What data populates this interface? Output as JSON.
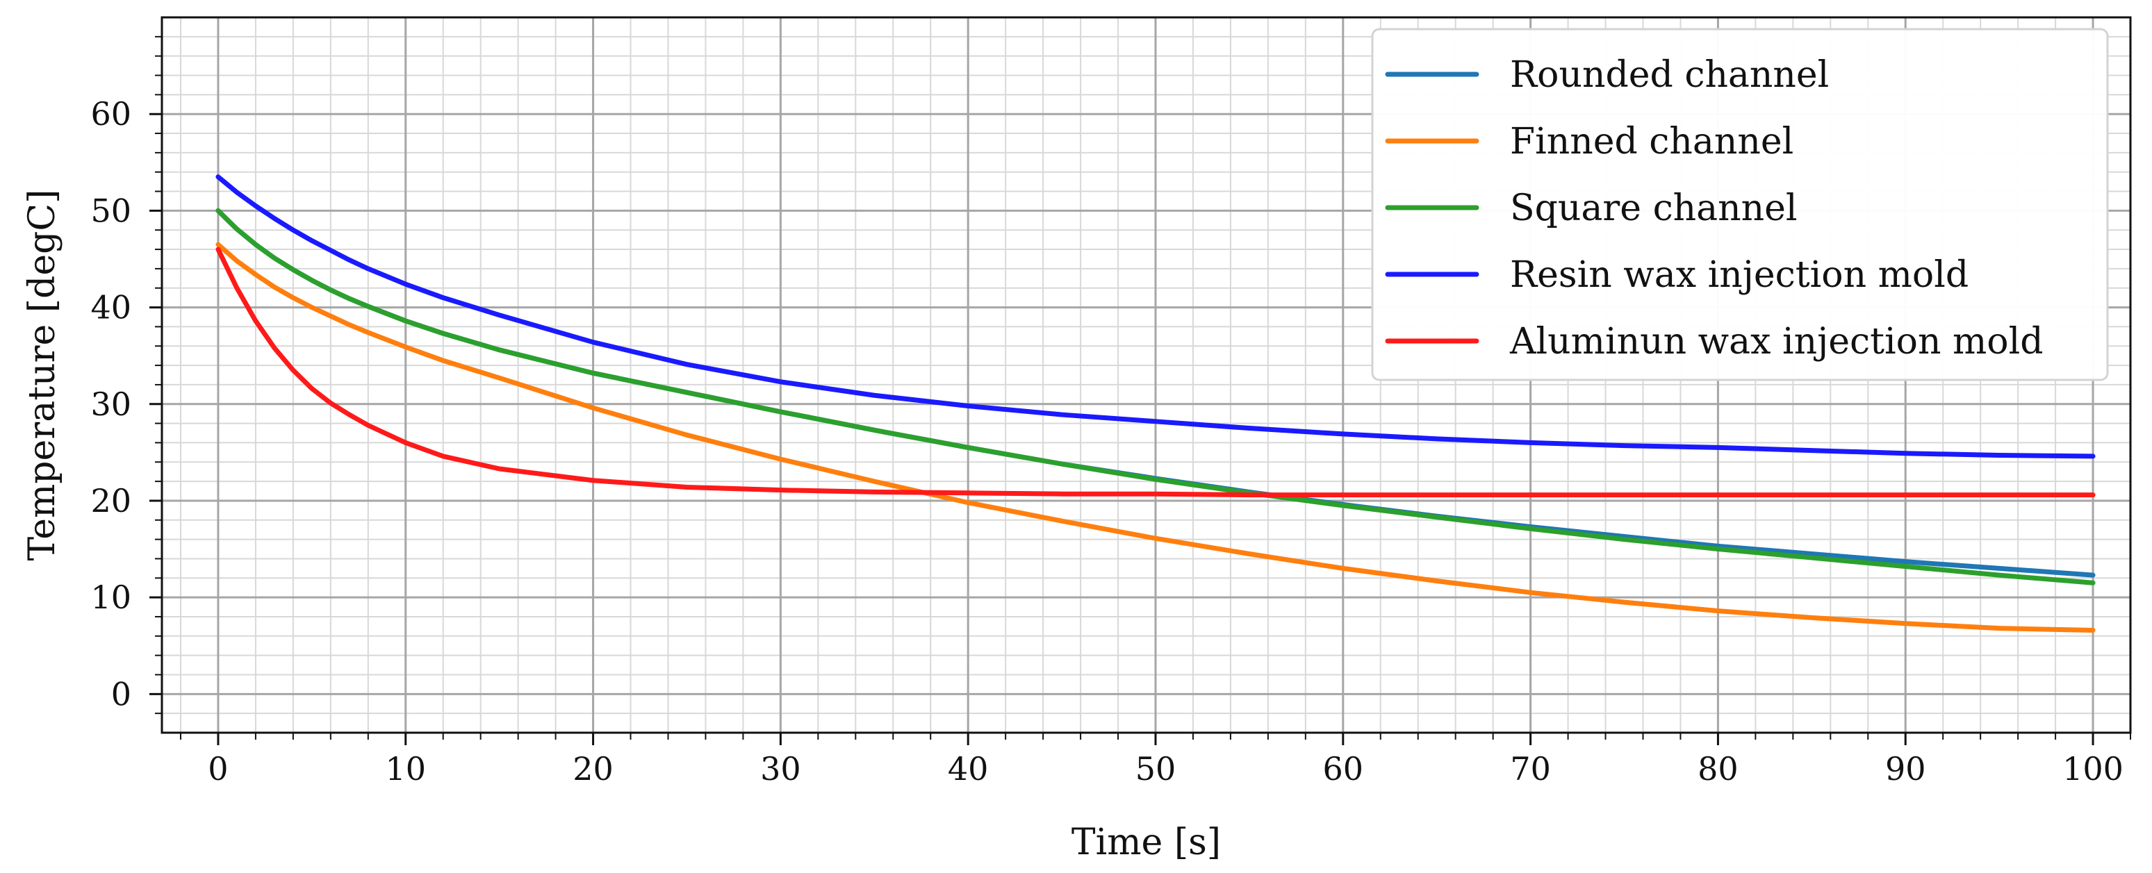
{
  "chart_data": {
    "type": "line",
    "title": "",
    "xlabel": "Time [s]",
    "ylabel": "Temperature [degC]",
    "xlim": [
      -3,
      102
    ],
    "ylim": [
      -4,
      70
    ],
    "xticks": [
      0,
      10,
      20,
      30,
      40,
      50,
      60,
      70,
      80,
      90,
      100
    ],
    "yticks": [
      0,
      10,
      20,
      30,
      40,
      50,
      60
    ],
    "grid": true,
    "legend_position": "top-right",
    "x": [
      0,
      1,
      2,
      3,
      4,
      5,
      6,
      7,
      8,
      10,
      12,
      15,
      20,
      25,
      30,
      35,
      40,
      45,
      50,
      55,
      60,
      65,
      70,
      75,
      80,
      85,
      90,
      95,
      100
    ],
    "series": [
      {
        "name": "Rounded channel",
        "color": "#1f77b4",
        "values": [
          50.0,
          48.1,
          46.5,
          45.1,
          43.9,
          42.8,
          41.8,
          40.9,
          40.1,
          38.6,
          37.3,
          35.6,
          33.2,
          31.2,
          29.2,
          27.3,
          25.5,
          23.8,
          22.3,
          20.9,
          19.6,
          18.4,
          17.3,
          16.3,
          15.3,
          14.5,
          13.7,
          13.0,
          12.3
        ]
      },
      {
        "name": "Finned channel",
        "color": "#ff7f0e",
        "values": [
          46.5,
          44.8,
          43.4,
          42.1,
          41.0,
          40.0,
          39.1,
          38.2,
          37.4,
          35.9,
          34.5,
          32.7,
          29.6,
          26.8,
          24.3,
          22.0,
          19.8,
          17.9,
          16.1,
          14.5,
          13.0,
          11.7,
          10.5,
          9.5,
          8.6,
          7.9,
          7.3,
          6.8,
          6.6
        ]
      },
      {
        "name": "Square channel",
        "color": "#2ca02c",
        "values": [
          50.0,
          48.1,
          46.5,
          45.1,
          43.9,
          42.8,
          41.8,
          40.9,
          40.1,
          38.6,
          37.3,
          35.6,
          33.2,
          31.2,
          29.2,
          27.3,
          25.5,
          23.8,
          22.2,
          20.8,
          19.5,
          18.3,
          17.1,
          16.0,
          15.0,
          14.1,
          13.2,
          12.3,
          11.5
        ]
      },
      {
        "name": "Resin wax injection mold",
        "color": "#1a1aff",
        "values": [
          53.5,
          51.9,
          50.5,
          49.2,
          48.0,
          46.9,
          45.9,
          44.9,
          44.0,
          42.4,
          41.0,
          39.2,
          36.4,
          34.1,
          32.3,
          30.9,
          29.8,
          28.9,
          28.2,
          27.5,
          26.9,
          26.4,
          26.0,
          25.7,
          25.5,
          25.2,
          24.9,
          24.7,
          24.6
        ]
      },
      {
        "name": "Aluminun wax injection mold",
        "color": "#ff1a1a",
        "values": [
          46.0,
          42.0,
          38.6,
          35.8,
          33.5,
          31.6,
          30.1,
          28.9,
          27.8,
          26.0,
          24.6,
          23.3,
          22.1,
          21.4,
          21.1,
          20.9,
          20.8,
          20.7,
          20.7,
          20.6,
          20.6,
          20.6,
          20.6,
          20.6,
          20.6,
          20.6,
          20.6,
          20.6,
          20.6
        ]
      }
    ]
  }
}
